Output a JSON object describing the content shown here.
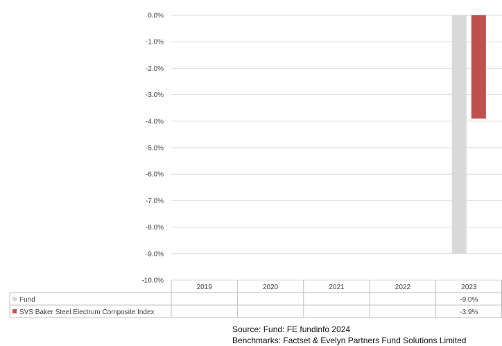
{
  "chart_data": {
    "type": "bar",
    "categories": [
      "2019",
      "2020",
      "2021",
      "2022",
      "2023"
    ],
    "series": [
      {
        "name": "Fund",
        "values": [
          null,
          null,
          null,
          null,
          -9.0
        ],
        "labels": [
          "",
          "",
          "",
          "",
          "-9.0%"
        ],
        "color": "#d9d9d9"
      },
      {
        "name": "SVS Baker Steel Electrum Composite Index",
        "values": [
          null,
          null,
          null,
          null,
          -3.9
        ],
        "labels": [
          "",
          "",
          "",
          "",
          "-3.9%"
        ],
        "color": "#c0504d"
      }
    ],
    "yticks": [
      "0.0%",
      "-1.0%",
      "-2.0%",
      "-3.0%",
      "-4.0%",
      "-5.0%",
      "-6.0%",
      "-7.0%",
      "-8.0%",
      "-9.0%",
      "-10.0%"
    ],
    "ylim": [
      -10,
      0
    ],
    "grid": true,
    "legend": "data-table-left"
  },
  "source": {
    "line1": "Source: Fund: FE fundinfo 2024",
    "line2": "Benchmarks: Factset & Evelyn Partners Fund Solutions Limited"
  }
}
